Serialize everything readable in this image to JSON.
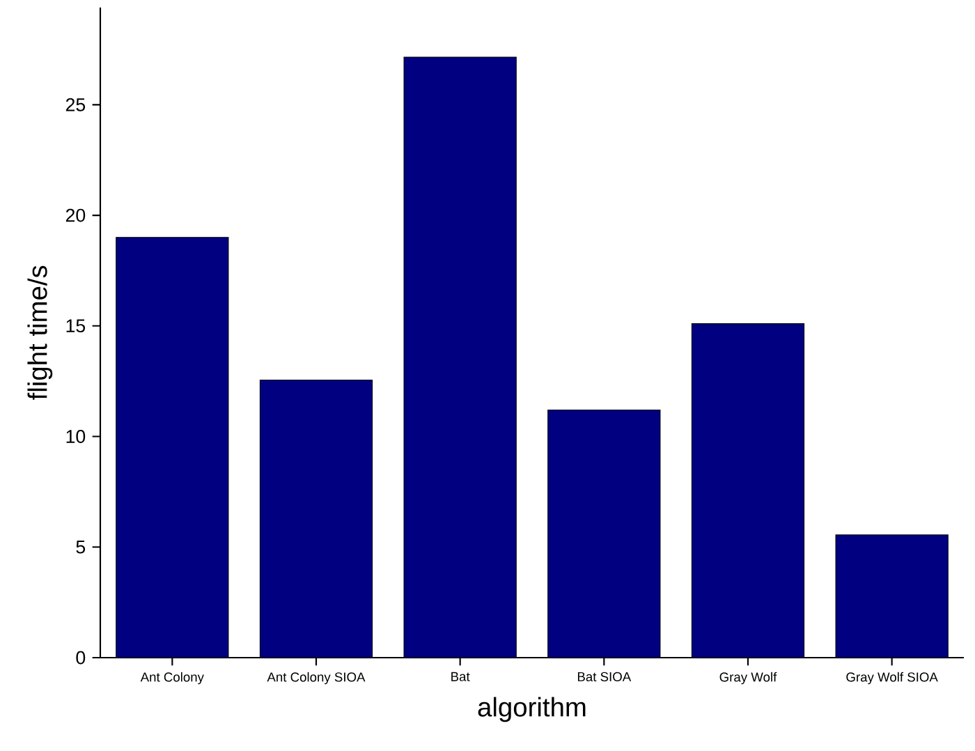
{
  "chart_data": {
    "type": "bar",
    "xlabel": "algorithm",
    "ylabel": "flight time/s",
    "categories": [
      "Ant Colony",
      "Ant Colony SIOA",
      "Bat",
      "Bat SIOA",
      "Gray Wolf",
      "Gray Wolf SIOA"
    ],
    "values": [
      19.0,
      12.55,
      27.15,
      11.2,
      15.1,
      5.55
    ],
    "color": "#000080",
    "ylim": [
      0,
      29.4
    ],
    "yticks": [
      0,
      5,
      10,
      15,
      20,
      25
    ],
    "grid": false
  }
}
